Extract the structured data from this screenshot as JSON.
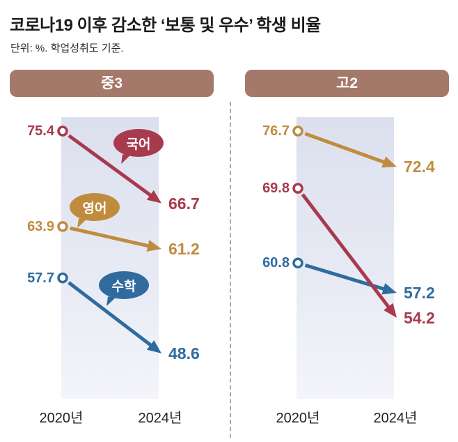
{
  "title": "코로나19 이후 감소한 ‘보통 및 우수’ 학생 비율",
  "subtitle": "단위: %. 학업성취도 기준.",
  "colors": {
    "header_bar": "#a5796a",
    "korean": "#a83a4e",
    "english": "#bf8c3e",
    "math": "#2f6b9e",
    "band_top": "#dce0ee",
    "band_bottom": "#f4f5fa"
  },
  "chart_data": {
    "type": "line",
    "subtype": "slope-arrow",
    "unit": "%",
    "x_labels": [
      "2020년",
      "2024년"
    ],
    "ylim": [
      45,
      80
    ],
    "grid": false,
    "legend": "speech-bubbles-on-left-panel",
    "panels": [
      {
        "name": "중3",
        "series": [
          {
            "name": "국어",
            "color": "#a83a4e",
            "values": [
              75.4,
              66.7
            ]
          },
          {
            "name": "영어",
            "color": "#bf8c3e",
            "values": [
              63.9,
              61.2
            ]
          },
          {
            "name": "수학",
            "color": "#2f6b9e",
            "values": [
              57.7,
              48.6
            ]
          }
        ]
      },
      {
        "name": "고2",
        "series": [
          {
            "name": "영어",
            "color": "#bf8c3e",
            "values": [
              76.7,
              72.4
            ]
          },
          {
            "name": "국어",
            "color": "#a83a4e",
            "values": [
              69.8,
              54.2
            ]
          },
          {
            "name": "수학",
            "color": "#2f6b9e",
            "values": [
              60.8,
              57.2
            ]
          }
        ]
      }
    ]
  }
}
